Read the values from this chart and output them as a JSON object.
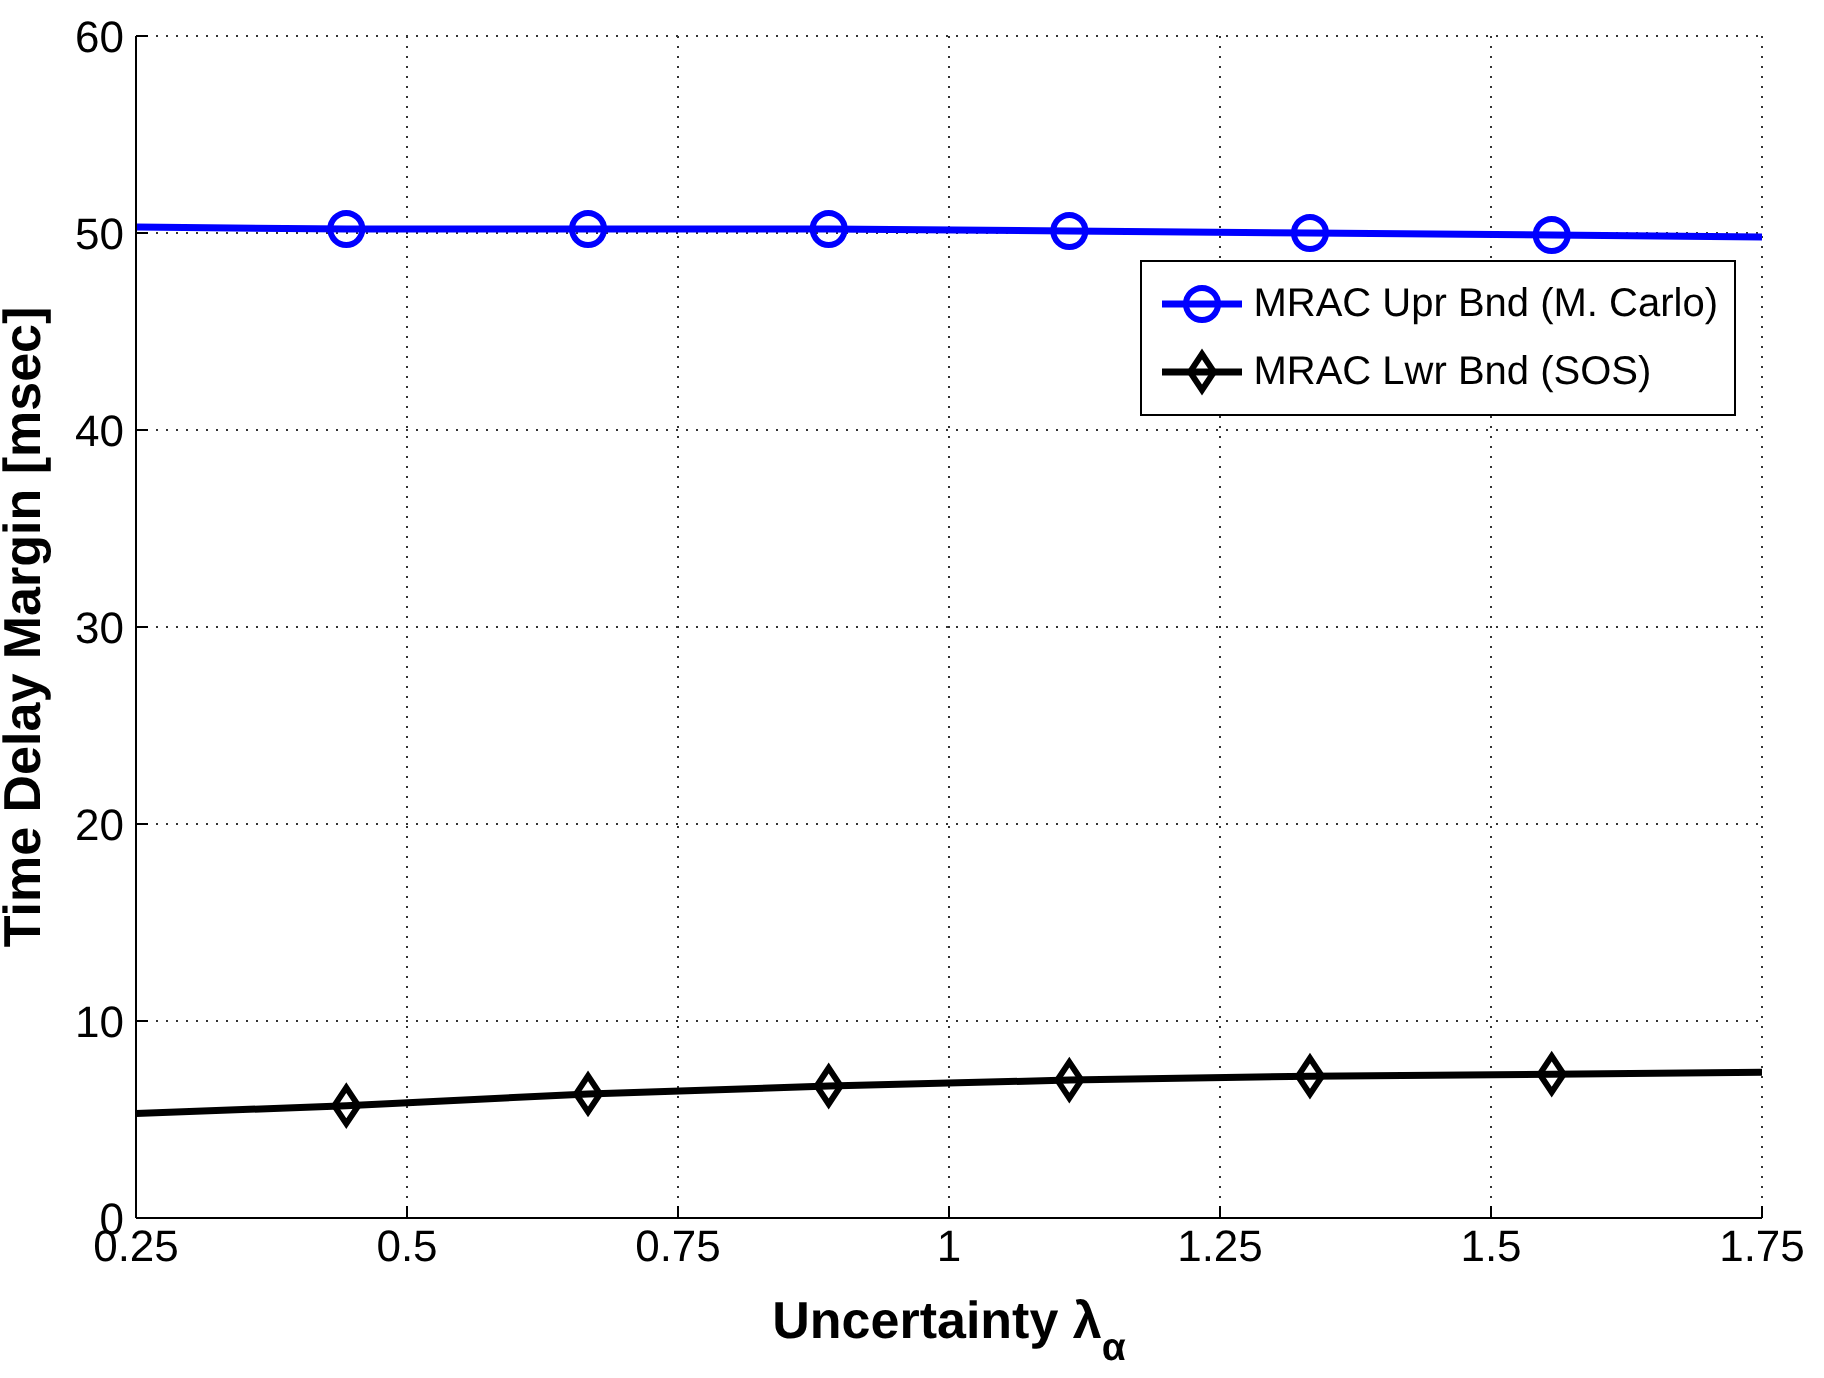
{
  "chart_data": {
    "type": "line",
    "xlabel": "Uncertainty λ$_{α}$",
    "ylabel": "Time Delay Margin [msec]",
    "x": [
      0.25,
      0.444,
      0.667,
      0.889,
      1.111,
      1.333,
      1.556,
      1.75
    ],
    "series": [
      {
        "name": "MRAC Upr Bnd (M. Carlo)",
        "color": "#0000ff",
        "marker": "circle",
        "values": [
          50.3,
          50.2,
          50.2,
          50.2,
          50.1,
          50.0,
          49.9,
          49.8
        ]
      },
      {
        "name": "MRAC Lwr Bnd (SOS)",
        "color": "#000000",
        "marker": "diamond",
        "values": [
          5.3,
          5.7,
          6.3,
          6.7,
          7.0,
          7.2,
          7.3,
          7.4
        ]
      }
    ],
    "xlim": [
      0.25,
      1.75
    ],
    "xticks": [
      0.25,
      0.5,
      0.75,
      1,
      1.25,
      1.5,
      1.75
    ],
    "ylim": [
      0,
      60
    ],
    "yticks": [
      0,
      10,
      20,
      30,
      40,
      50,
      60
    ],
    "grid": true,
    "legend": "top right",
    "line_style": "solid"
  }
}
